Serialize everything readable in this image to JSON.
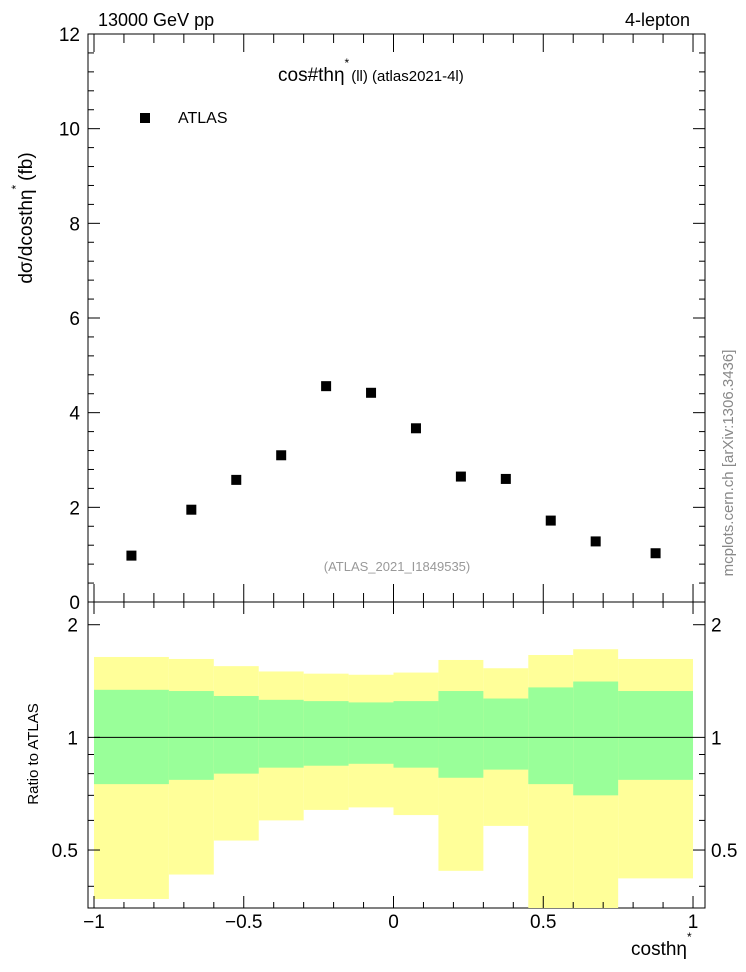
{
  "header": {
    "energy_label": "13000 GeV pp",
    "channel_label": "4-lepton",
    "plot_title": "cos#thη",
    "plot_title_sup": "*",
    "plot_title_suffix": "(ll) (atlas2021-4l)",
    "analysis_id": "(ATLAS_2021_I1849535)",
    "side_credit": "mcplots.cern.ch [arXiv:1306.3436]"
  },
  "chart_data": [
    {
      "type": "scatter",
      "ylabel": "dσ/dcosthη",
      "ylabel_sup": "*",
      "ylabel_unit": "(fb)",
      "ylim": [
        0,
        12
      ],
      "xlim": [
        -1.02,
        1.04
      ],
      "y_ticks": [
        "0",
        "2",
        "4",
        "6",
        "8",
        "10",
        "12"
      ],
      "legend": {
        "placement": "top-left",
        "entries": [
          "ATLAS"
        ]
      },
      "marker_color": "#000000",
      "series": [
        {
          "name": "ATLAS",
          "x": [
            -0.875,
            -0.675,
            -0.525,
            -0.375,
            -0.225,
            -0.075,
            0.075,
            0.225,
            0.375,
            0.525,
            0.675,
            0.875
          ],
          "y": [
            0.98,
            1.95,
            2.58,
            3.1,
            4.56,
            4.42,
            3.67,
            2.65,
            2.6,
            1.72,
            1.28,
            1.03
          ]
        }
      ]
    },
    {
      "type": "area",
      "ylabel": "Ratio to ATLAS",
      "xlabel": "costhη",
      "xlabel_sup": "*",
      "ylim": [
        0.35,
        2.3
      ],
      "xlim": [
        -1.02,
        1.04
      ],
      "x_ticks": [
        "−1",
        "−0.5",
        "0",
        "0.5",
        "1"
      ],
      "y_ticks": [
        "0.5",
        "1",
        "2"
      ],
      "colors": {
        "outer_band": "#ffff99",
        "inner_band": "#99ff99",
        "ref_line": "#000000"
      },
      "bin_edges": [
        -1.0,
        -0.75,
        -0.6,
        -0.45,
        -0.3,
        -0.15,
        0.0,
        0.15,
        0.3,
        0.45,
        0.6,
        0.75,
        1.0
      ],
      "bands": [
        {
          "name": "outer",
          "low": [
            0.37,
            0.43,
            0.53,
            0.6,
            0.64,
            0.65,
            0.62,
            0.44,
            0.58,
            0.33,
            0.34,
            0.42
          ],
          "high": [
            1.64,
            1.62,
            1.55,
            1.5,
            1.48,
            1.47,
            1.49,
            1.61,
            1.53,
            1.66,
            1.72,
            1.62
          ]
        },
        {
          "name": "inner",
          "low": [
            0.75,
            0.77,
            0.8,
            0.83,
            0.84,
            0.85,
            0.83,
            0.78,
            0.82,
            0.75,
            0.7,
            0.77
          ],
          "high": [
            1.34,
            1.33,
            1.29,
            1.26,
            1.25,
            1.24,
            1.25,
            1.33,
            1.27,
            1.36,
            1.41,
            1.33
          ]
        }
      ],
      "reference_value": 1.0
    }
  ]
}
